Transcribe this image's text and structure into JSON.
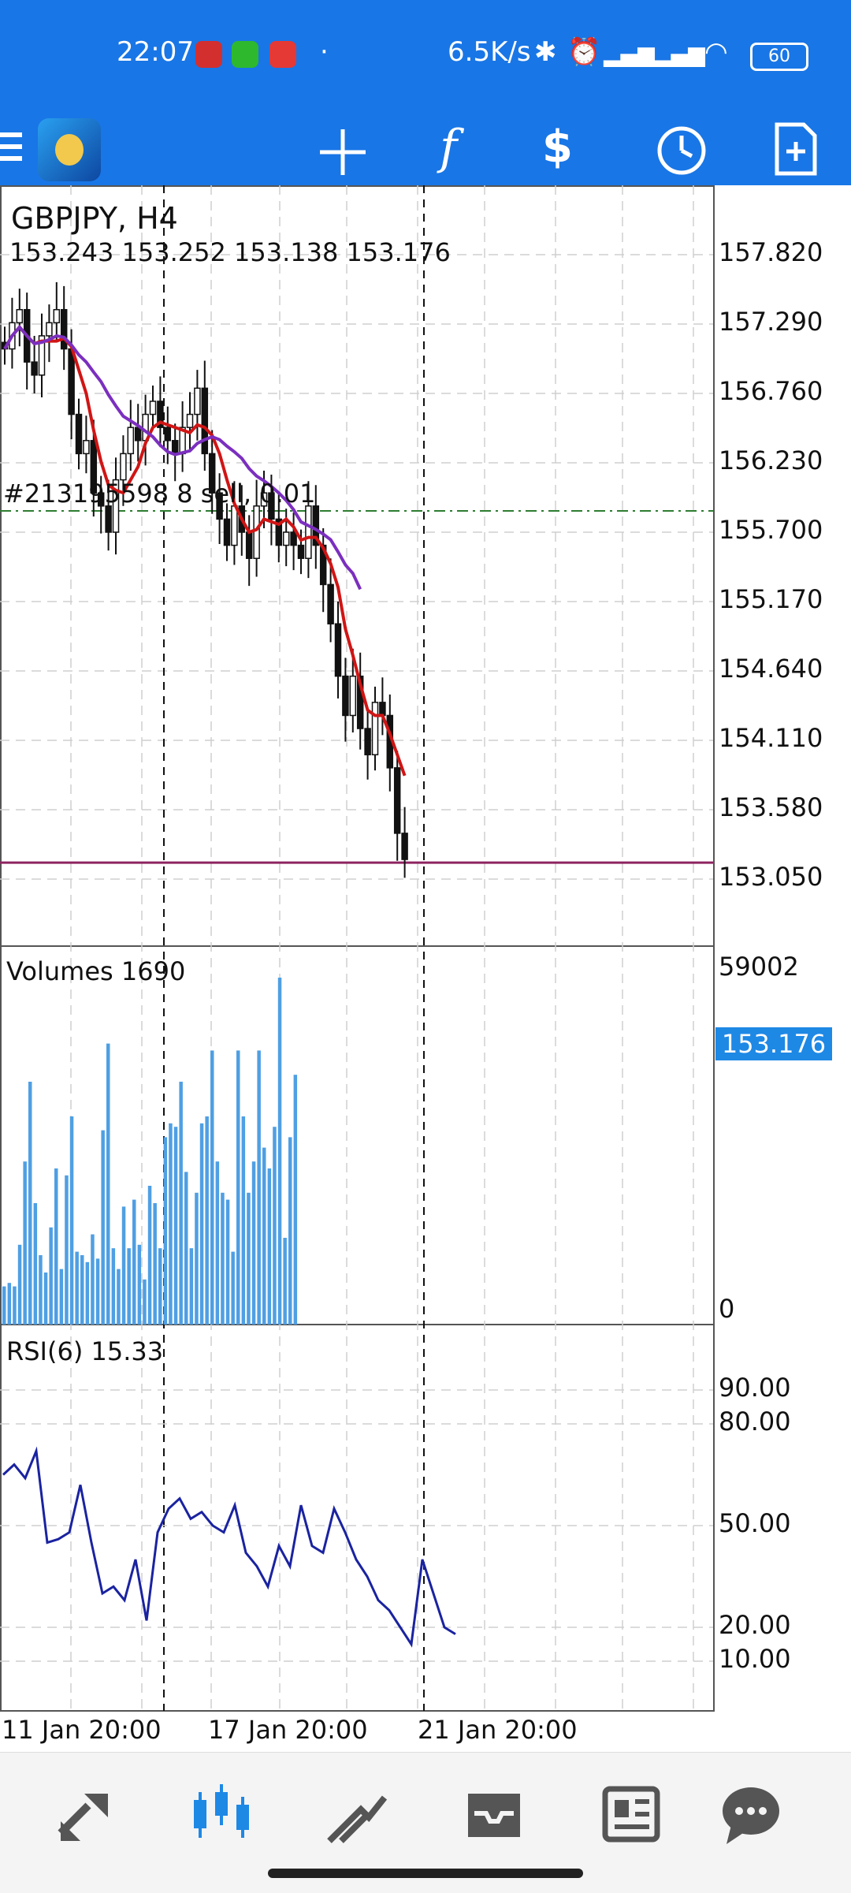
{
  "status_bar": {
    "time": "22:07",
    "speed": "6.5K/s",
    "battery": "60",
    "notifications": [
      "app-notification-1",
      "wechat-icon",
      "news-notification"
    ]
  },
  "toolbar": {
    "icons": [
      "menu-icon",
      "app-logo",
      "crosshair-icon",
      "indicator-f-icon",
      "trade-icon",
      "clock-icon",
      "new-document-icon"
    ]
  },
  "chart": {
    "symbol_title": "GBPJPY, H4",
    "ohlc": "153.243 153.252 153.138 153.176",
    "order_label": "#213195598 8 sell, 0.01",
    "current_price": "153.176",
    "price_ticks": [
      "157.820",
      "157.290",
      "156.760",
      "156.230",
      "155.700",
      "155.170",
      "154.640",
      "154.110",
      "153.580",
      "153.050"
    ],
    "time_ticks": [
      "11 Jan 20:00",
      "17 Jan 20:00",
      "21 Jan 20:00"
    ],
    "volumes_label": "Volumes 1690",
    "volume_ticks": [
      "59002",
      "0"
    ],
    "rsi_label": "RSI(6) 15.33",
    "rsi_ticks": [
      "90.00",
      "80.00",
      "50.00",
      "20.00",
      "10.00"
    ]
  },
  "chart_data": {
    "type": "line",
    "title": "GBPJPY, H4",
    "price_range": [
      153.05,
      157.82
    ],
    "candles_close_approx": [
      157.1,
      157.3,
      157.4,
      157.0,
      156.9,
      157.2,
      157.3,
      157.4,
      157.1,
      156.6,
      156.3,
      156.4,
      156.0,
      155.9,
      155.7,
      156.1,
      156.3,
      156.5,
      156.4,
      156.6,
      156.7,
      156.5,
      156.4,
      156.3,
      156.5,
      156.6,
      156.8,
      156.3,
      156.0,
      155.8,
      155.6,
      155.9,
      155.7,
      155.5,
      155.9,
      156.0,
      155.8,
      155.6,
      155.7,
      155.6,
      155.5,
      155.9,
      155.6,
      155.3,
      155.0,
      154.6,
      154.3,
      154.6,
      154.2,
      154.0,
      154.4,
      154.3,
      153.9,
      153.4,
      153.2
    ],
    "volumes_range": [
      0,
      59002
    ],
    "rsi_series": [
      65,
      68,
      64,
      72,
      45,
      46,
      48,
      62,
      45,
      30,
      32,
      28,
      40,
      22,
      48,
      55,
      58,
      52,
      54,
      50,
      48,
      56,
      42,
      38,
      32,
      44,
      38,
      56,
      44,
      42,
      55,
      48,
      40,
      35,
      28,
      25,
      20,
      15,
      40,
      30,
      20,
      18
    ],
    "rsi_ylim": [
      0,
      100
    ]
  }
}
